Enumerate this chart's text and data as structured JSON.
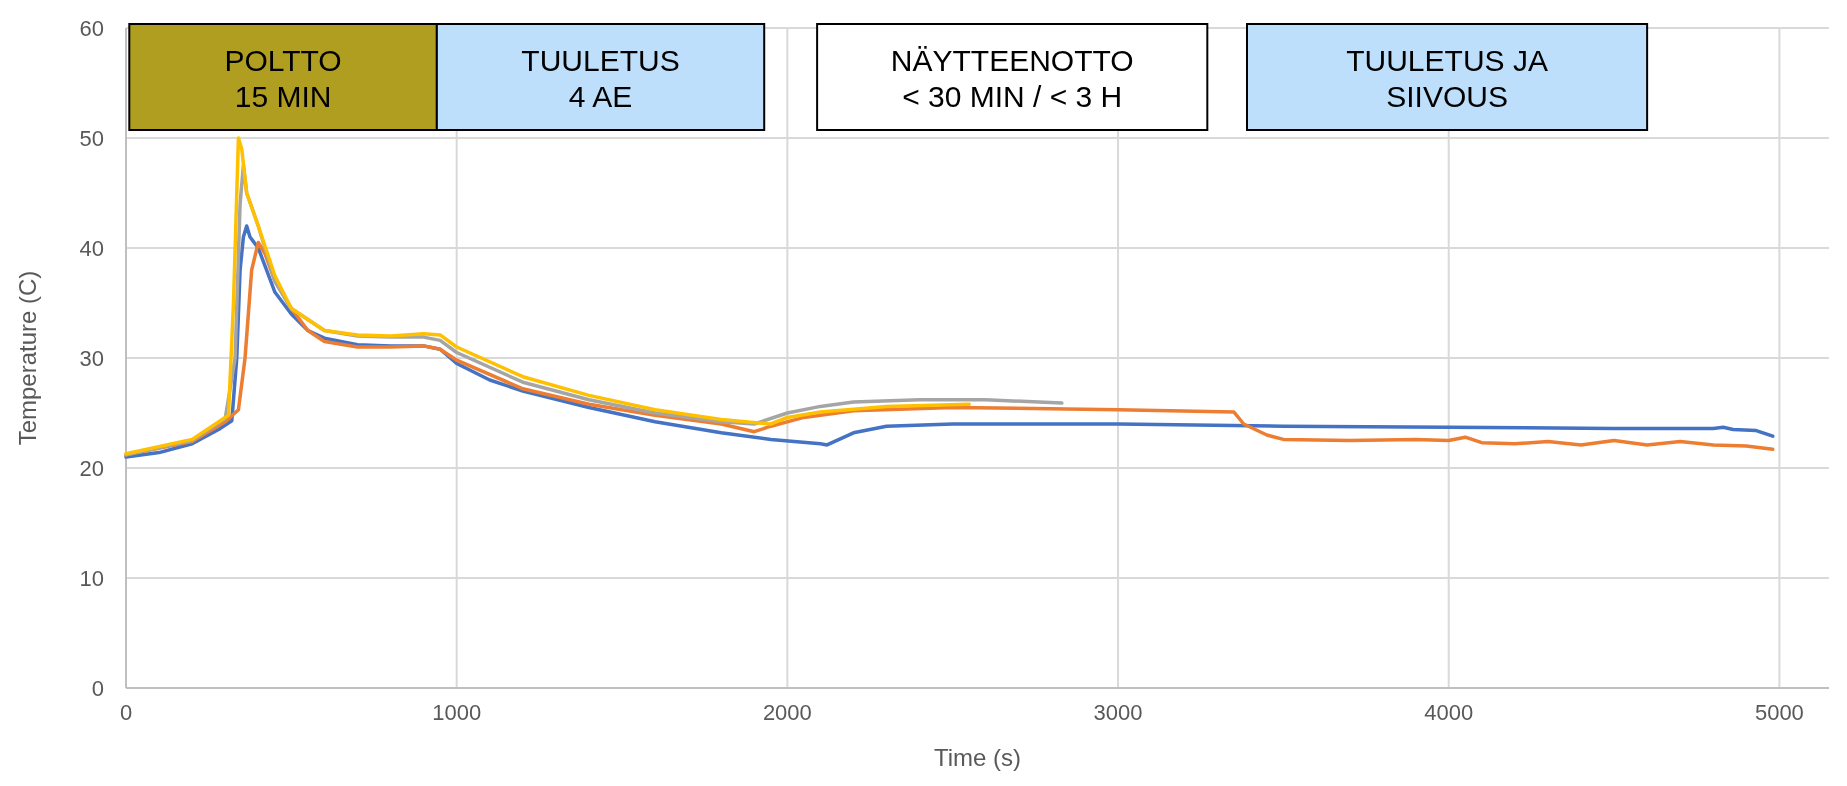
{
  "chart_data": {
    "type": "line",
    "xlabel": "Time (s)",
    "ylabel": "Temperature (C)",
    "xlim": [
      0,
      5150
    ],
    "xticks": [
      0,
      1000,
      2000,
      3000,
      4000,
      5000
    ],
    "ylim": [
      0,
      60
    ],
    "yticks": [
      0,
      10,
      20,
      30,
      40,
      50,
      60
    ],
    "grid": true,
    "marker": "none",
    "line_style": "solid",
    "bands": [
      {
        "axis": "x",
        "from": 10,
        "to": 940,
        "label": "POLTTO\n15 MIN",
        "color": "#b09e20"
      },
      {
        "axis": "x",
        "from": 940,
        "to": 1930,
        "label": "TUULETUS\n4 AE",
        "color": "#bddffb"
      },
      {
        "axis": "x",
        "from": 2090,
        "to": 3270,
        "label": "NÄYTTEENOTTO\n< 30 MIN / < 3 H",
        "color": "#ffffff"
      },
      {
        "axis": "x",
        "from": 3390,
        "to": 4600,
        "label": "TUULETUS JA\nSIIVOUS",
        "color": "#bddffb"
      }
    ],
    "series": [
      {
        "color": "#4472c4",
        "x": [
          0,
          100,
          200,
          280,
          320,
          335,
          345,
          355,
          365,
          375,
          400,
          450,
          500,
          550,
          600,
          700,
          800,
          900,
          950,
          1000,
          1100,
          1200,
          1400,
          1600,
          1800,
          1950,
          2100,
          2120,
          2200,
          2300,
          2500,
          3000,
          3500,
          4000,
          4500,
          4800,
          4830,
          4860,
          4930,
          4980
        ],
        "values": [
          21,
          21.4,
          22.2,
          23.5,
          24.3,
          30,
          38,
          41,
          42,
          41,
          40,
          36,
          34,
          32.5,
          31.8,
          31.2,
          31.1,
          31.1,
          30.8,
          29.5,
          28,
          27,
          25.5,
          24.2,
          23.2,
          22.6,
          22.2,
          22.1,
          23.2,
          23.8,
          24,
          24,
          23.8,
          23.7,
          23.6,
          23.6,
          23.7,
          23.5,
          23.4,
          22.9
        ]
      },
      {
        "color": "#ed7d31",
        "x": [
          0,
          200,
          300,
          340,
          360,
          380,
          400,
          420,
          450,
          500,
          550,
          600,
          700,
          800,
          900,
          950,
          1000,
          1200,
          1400,
          1600,
          1800,
          1900,
          1950,
          2050,
          2200,
          2500,
          3000,
          3350,
          3380,
          3450,
          3500,
          3700,
          3900,
          4000,
          4050,
          4100,
          4200,
          4300,
          4400,
          4500,
          4600,
          4700,
          4800,
          4900,
          4980
        ],
        "values": [
          21.2,
          22.4,
          24.2,
          25.3,
          30,
          38,
          40.5,
          39.5,
          37,
          34.5,
          32.5,
          31.5,
          31,
          31,
          31.1,
          30.8,
          29.8,
          27.2,
          25.8,
          24.8,
          24,
          23.3,
          23.8,
          24.6,
          25.2,
          25.5,
          25.3,
          25.1,
          24,
          23,
          22.6,
          22.5,
          22.6,
          22.5,
          22.8,
          22.3,
          22.2,
          22.4,
          22.1,
          22.5,
          22.1,
          22.4,
          22.1,
          22,
          21.7
        ]
      },
      {
        "color": "#a5a5a5",
        "x": [
          0,
          200,
          300,
          330,
          345,
          355,
          365,
          400,
          450,
          500,
          600,
          700,
          800,
          900,
          950,
          1000,
          1200,
          1400,
          1600,
          1800,
          1900,
          2000,
          2100,
          2200,
          2400,
          2600,
          2830
        ],
        "values": [
          21.2,
          22.5,
          24.5,
          30,
          44,
          47.5,
          45,
          42,
          37,
          34.5,
          32.5,
          32,
          31.9,
          31.9,
          31.6,
          30.5,
          27.8,
          26.2,
          25,
          24.2,
          24,
          25,
          25.6,
          26,
          26.2,
          26.2,
          25.9
        ]
      },
      {
        "color": "#ffc000",
        "x": [
          0,
          200,
          310,
          325,
          340,
          350,
          365,
          400,
          450,
          500,
          600,
          700,
          800,
          900,
          950,
          1000,
          1200,
          1400,
          1600,
          1800,
          1950,
          2000,
          2100,
          2300,
          2550
        ],
        "values": [
          21.3,
          22.6,
          24.8,
          35,
          50,
          49,
          45,
          42,
          37.5,
          34.5,
          32.5,
          32.1,
          32,
          32.2,
          32.1,
          31,
          28.3,
          26.6,
          25.3,
          24.4,
          24,
          24.6,
          25.1,
          25.6,
          25.8
        ]
      }
    ]
  }
}
